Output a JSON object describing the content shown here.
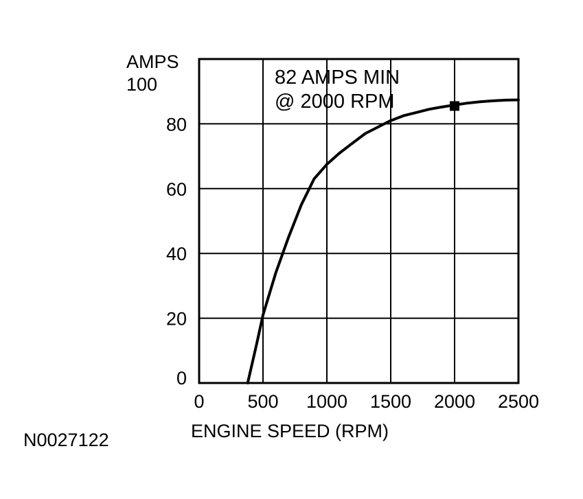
{
  "chart_data": {
    "type": "line",
    "ylabel": "AMPS",
    "xlabel": "ENGINE SPEED (RPM)",
    "xlim": [
      0,
      2500
    ],
    "ylim": [
      0,
      100
    ],
    "x_ticks": [
      0,
      500,
      1000,
      1500,
      2000,
      2500
    ],
    "y_ticks": [
      0,
      20,
      40,
      60,
      80,
      100
    ],
    "grid": true,
    "series": [
      {
        "x": [
          380,
          450,
          500,
          600,
          700,
          800,
          900,
          1000,
          1100,
          1200,
          1300,
          1400,
          1500,
          1600,
          1700,
          1800,
          1900,
          2000,
          2100,
          2200,
          2300,
          2400,
          2500
        ],
        "y": [
          0,
          12,
          21,
          34,
          45,
          55,
          63,
          67.5,
          71,
          74,
          77,
          79,
          81,
          82.5,
          83.5,
          84.5,
          85.2,
          85.8,
          86.4,
          86.8,
          87.1,
          87.3,
          87.4
        ]
      }
    ],
    "markers": [
      {
        "x": 2000,
        "y": 85.5
      }
    ],
    "annotation": [
      "82 AMPS MIN",
      "@ 2000 RPM"
    ],
    "figure_id": "N0027122",
    "colors": {
      "line": "#000000",
      "grid": "#000000",
      "background": "#ffffff"
    }
  }
}
